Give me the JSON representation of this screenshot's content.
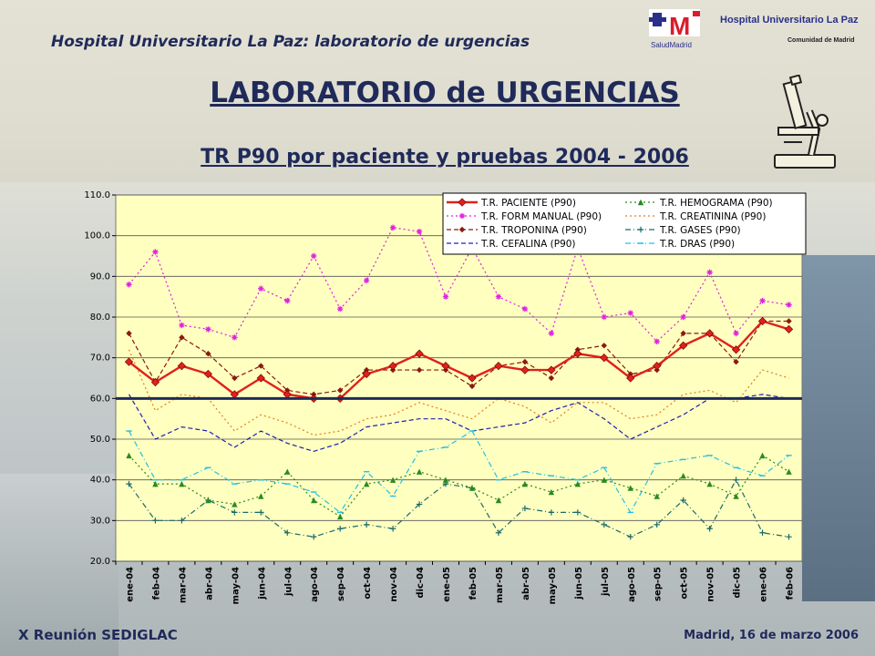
{
  "header": {
    "text": "Hospital Universitario La Paz: laboratorio de urgencias",
    "logo_hospital": "Hospital Universitario La Paz",
    "logo_salud": "SaludMadrid",
    "logo_comunidad": "Comunidad de Madrid"
  },
  "title": "LABORATORIO de URGENCIAS",
  "subtitle": "TR P90 por paciente y pruebas 2004 - 2006",
  "footer": {
    "left": "X Reunión SEDIGLAC",
    "right": "Madrid, 16 de marzo 2006"
  },
  "colors": {
    "title": "#1f2a5a",
    "plot_bg": "#ffffc0",
    "reference_line": "#1f2a5a"
  },
  "icons": [
    "microscope-icon",
    "hospital-logo-icon"
  ],
  "chart_data": {
    "type": "line",
    "categories": [
      "ene-04",
      "feb-04",
      "mar-04",
      "abr-04",
      "may-04",
      "jun-04",
      "jul-04",
      "ago-04",
      "sep-04",
      "oct-04",
      "nov-04",
      "dic-04",
      "ene-05",
      "feb-05",
      "mar-05",
      "abr-05",
      "may-05",
      "jun-05",
      "jul-05",
      "ago-05",
      "sep-05",
      "oct-05",
      "nov-05",
      "dic-05",
      "ene-06",
      "feb-06"
    ],
    "ylim": [
      20,
      110
    ],
    "yticks": [
      "20.0",
      "30.0",
      "40.0",
      "50.0",
      "60.0",
      "70.0",
      "80.0",
      "90.0",
      "100.0",
      "110.0"
    ],
    "grid": "horizontal",
    "legend_position": "top-right",
    "reference_line": 60,
    "series": [
      {
        "name": "T.R. PACIENTE (P90)",
        "color": "#e0201c",
        "style": "solid",
        "marker": "diamond",
        "values": [
          69,
          64,
          68,
          66,
          61,
          65,
          61,
          60,
          60,
          66,
          68,
          71,
          68,
          65,
          68,
          67,
          67,
          71,
          70,
          65,
          68,
          73,
          76,
          72,
          79,
          77
        ]
      },
      {
        "name": "T.R. HEMOGRAMA (P90)",
        "color": "#2a8a22",
        "style": "dotted",
        "marker": "triangle",
        "values": [
          46,
          39,
          39,
          35,
          34,
          36,
          42,
          35,
          31,
          39,
          40,
          42,
          40,
          38,
          35,
          39,
          37,
          39,
          40,
          38,
          36,
          41,
          39,
          36,
          46,
          42
        ]
      },
      {
        "name": "T.R. FORM MANUAL (P90)",
        "color": "#e020e0",
        "style": "dotted",
        "marker": "star",
        "values": [
          88,
          96,
          78,
          77,
          75,
          87,
          84,
          95,
          82,
          89,
          102,
          101,
          85,
          97,
          85,
          82,
          76,
          97,
          80,
          81,
          74,
          80,
          91,
          76,
          84,
          83
        ]
      },
      {
        "name": "T.R. CREATININA (P90)",
        "color": "#e87a20",
        "style": "dotted",
        "marker": "none",
        "values": [
          72,
          57,
          61,
          60,
          52,
          56,
          54,
          51,
          52,
          55,
          56,
          59,
          57,
          55,
          60,
          58,
          54,
          59,
          59,
          55,
          56,
          61,
          62,
          59,
          67,
          65
        ]
      },
      {
        "name": "T.R. TROPONINA (P90)",
        "color": "#8a1a10",
        "style": "dashed",
        "marker": "circle",
        "values": [
          76,
          64,
          75,
          71,
          65,
          68,
          62,
          61,
          62,
          67,
          67,
          67,
          67,
          63,
          68,
          69,
          65,
          72,
          73,
          66,
          67,
          76,
          76,
          69,
          79,
          79
        ]
      },
      {
        "name": "T.R. GASES (P90)",
        "color": "#1a6a6a",
        "style": "dash-dot",
        "marker": "plus",
        "values": [
          39,
          30,
          30,
          35,
          32,
          32,
          27,
          26,
          28,
          29,
          28,
          34,
          39,
          38,
          27,
          33,
          32,
          32,
          29,
          26,
          29,
          35,
          28,
          40,
          27,
          26
        ]
      },
      {
        "name": "T.R. CEFALINA (P90)",
        "color": "#2020b0",
        "style": "dashed",
        "marker": "none",
        "values": [
          61,
          50,
          53,
          52,
          48,
          52,
          49,
          47,
          49,
          53,
          54,
          55,
          55,
          52,
          53,
          54,
          57,
          59,
          55,
          50,
          53,
          56,
          60,
          60,
          61,
          60
        ]
      },
      {
        "name": "T.R. DRAS (P90)",
        "color": "#20c0e8",
        "style": "dash-dot",
        "marker": "dash",
        "values": [
          52,
          40,
          40,
          43,
          39,
          40,
          39,
          37,
          32,
          42,
          36,
          47,
          48,
          52,
          40,
          42,
          41,
          40,
          43,
          32,
          44,
          45,
          46,
          43,
          41,
          46
        ]
      }
    ]
  }
}
